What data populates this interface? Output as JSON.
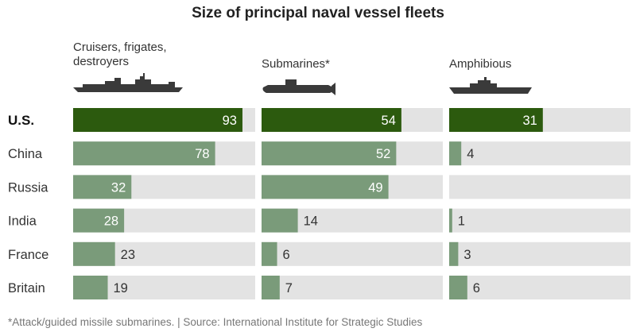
{
  "chart_data": {
    "type": "bar",
    "title": "Size of principal naval vessel fleets",
    "categories": [
      "U.S.",
      "China",
      "Russia",
      "India",
      "France",
      "Britain"
    ],
    "highlight_category": "U.S.",
    "series": [
      {
        "name": "Cruisers, frigates, destroyers",
        "values": [
          93,
          78,
          32,
          28,
          23,
          19
        ],
        "max": 100
      },
      {
        "name": "Submarines*",
        "values": [
          54,
          52,
          49,
          14,
          6,
          7
        ],
        "max": 70
      },
      {
        "name": "Amphibious",
        "values": [
          31,
          4,
          null,
          1,
          3,
          6
        ],
        "max": 60
      }
    ],
    "colors": {
      "highlight": "#2c5a0e",
      "bar": "#7a9b7a",
      "track": "#e3e3e3"
    },
    "footnote": "*Attack/guided missile submarines. | Source: International Institute for Strategic Studies"
  }
}
